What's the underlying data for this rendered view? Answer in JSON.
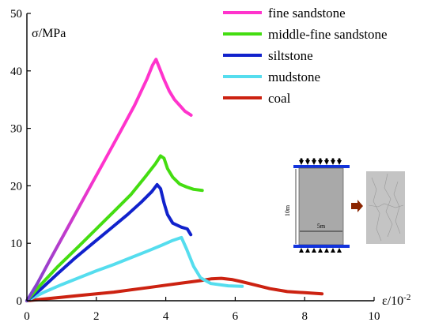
{
  "chart_data": {
    "type": "line",
    "title": "",
    "ylabel": "σ/MPa",
    "xlabel_base": "ε/10",
    "xlabel_exp": "-2",
    "xlim": [
      0,
      10
    ],
    "ylim": [
      0,
      50
    ],
    "xticks": [
      0,
      2,
      4,
      6,
      8,
      10
    ],
    "yticks": [
      0,
      10,
      20,
      30,
      40,
      50
    ],
    "grid": false,
    "legend_position": "top-right",
    "series": [
      {
        "name": "fine sandstone",
        "color": "#ff33cc",
        "gradient_start": "#7a44cc",
        "points": [
          [
            0,
            0
          ],
          [
            0.3,
            3
          ],
          [
            0.7,
            7.5
          ],
          [
            1.2,
            13
          ],
          [
            1.7,
            18.5
          ],
          [
            2.2,
            24
          ],
          [
            2.7,
            29.5
          ],
          [
            3.1,
            34
          ],
          [
            3.45,
            38.5
          ],
          [
            3.62,
            41
          ],
          [
            3.72,
            42
          ],
          [
            3.82,
            40.5
          ],
          [
            3.95,
            38.5
          ],
          [
            4.1,
            36.5
          ],
          [
            4.25,
            35
          ],
          [
            4.4,
            34
          ],
          [
            4.55,
            33
          ],
          [
            4.73,
            32.3
          ]
        ]
      },
      {
        "name": "middle-fine sandstone",
        "color": "#44dd11",
        "points": [
          [
            0,
            0
          ],
          [
            0.4,
            2.8
          ],
          [
            0.9,
            6
          ],
          [
            1.5,
            9.5
          ],
          [
            2,
            12.5
          ],
          [
            2.5,
            15.5
          ],
          [
            3,
            18.5
          ],
          [
            3.4,
            21.5
          ],
          [
            3.7,
            23.8
          ],
          [
            3.85,
            25.2
          ],
          [
            3.95,
            24.8
          ],
          [
            4.05,
            23
          ],
          [
            4.2,
            21.5
          ],
          [
            4.4,
            20.3
          ],
          [
            4.6,
            19.8
          ],
          [
            4.8,
            19.4
          ],
          [
            5.05,
            19.2
          ]
        ]
      },
      {
        "name": "siltstone",
        "color": "#1122cc",
        "points": [
          [
            0,
            0
          ],
          [
            0.4,
            2
          ],
          [
            0.9,
            4.8
          ],
          [
            1.4,
            7.5
          ],
          [
            1.9,
            10
          ],
          [
            2.4,
            12.5
          ],
          [
            2.9,
            15
          ],
          [
            3.3,
            17.2
          ],
          [
            3.6,
            19
          ],
          [
            3.75,
            20.2
          ],
          [
            3.85,
            19.5
          ],
          [
            3.95,
            17
          ],
          [
            4.05,
            15
          ],
          [
            4.2,
            13.5
          ],
          [
            4.45,
            12.8
          ],
          [
            4.62,
            12.5
          ],
          [
            4.72,
            11.5
          ]
        ]
      },
      {
        "name": "mudstone",
        "color": "#55ddee",
        "points": [
          [
            0,
            0
          ],
          [
            0.5,
            1.5
          ],
          [
            1,
            2.8
          ],
          [
            1.5,
            4
          ],
          [
            2,
            5.2
          ],
          [
            2.5,
            6.3
          ],
          [
            3,
            7.5
          ],
          [
            3.5,
            8.7
          ],
          [
            3.9,
            9.7
          ],
          [
            4.2,
            10.5
          ],
          [
            4.45,
            11
          ],
          [
            4.6,
            9
          ],
          [
            4.8,
            6
          ],
          [
            5,
            4
          ],
          [
            5.3,
            3
          ],
          [
            5.8,
            2.6
          ],
          [
            6.2,
            2.5
          ]
        ]
      },
      {
        "name": "coal",
        "color": "#cc2211",
        "points": [
          [
            0,
            0
          ],
          [
            0.5,
            0.3
          ],
          [
            1,
            0.6
          ],
          [
            1.5,
            0.9
          ],
          [
            2,
            1.2
          ],
          [
            2.5,
            1.5
          ],
          [
            3,
            1.9
          ],
          [
            3.5,
            2.3
          ],
          [
            4,
            2.7
          ],
          [
            4.5,
            3.1
          ],
          [
            5,
            3.5
          ],
          [
            5.3,
            3.8
          ],
          [
            5.6,
            3.9
          ],
          [
            5.9,
            3.7
          ],
          [
            6.2,
            3.3
          ],
          [
            6.6,
            2.7
          ],
          [
            7,
            2.1
          ],
          [
            7.5,
            1.6
          ],
          [
            8,
            1.4
          ],
          [
            8.5,
            1.2
          ]
        ]
      }
    ]
  },
  "inset": {
    "height_label": "10m",
    "width_label": "5m",
    "colors": {
      "plate": "#1133dd",
      "support": "#000000",
      "specimen": "#a9a9a9",
      "arrow": "#8b2500",
      "result": "#c4c4c4"
    }
  }
}
